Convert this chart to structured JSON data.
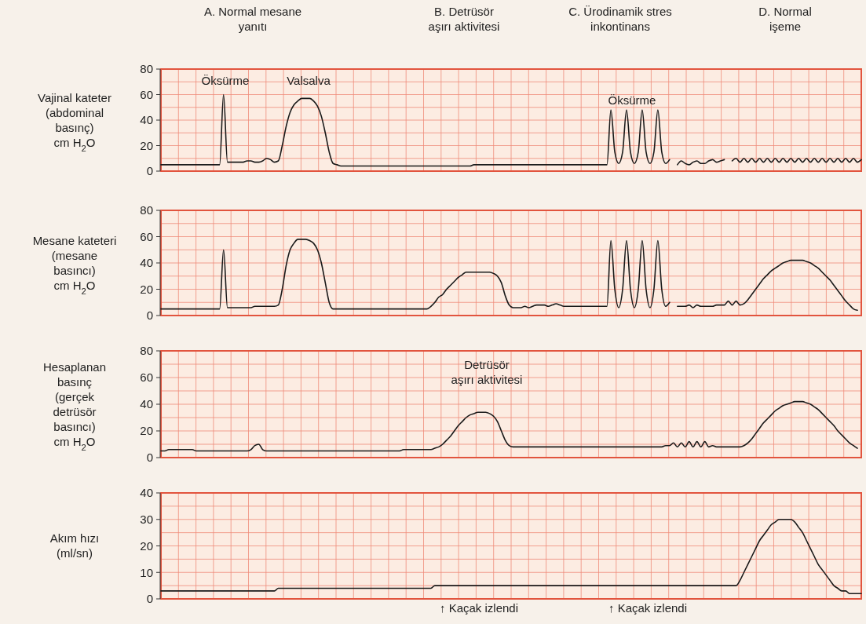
{
  "chart_data": [
    {
      "type": "line",
      "ylabel": "Vajinal kateter\n(abdominal\nbasınç)\ncm H$_{2}$O",
      "categories": [
        null,
        null,
        null,
        null,
        null,
        null,
        null,
        null,
        null,
        null,
        null,
        null,
        null,
        null,
        null,
        null,
        null,
        null,
        null,
        null,
        null,
        null,
        null,
        null,
        null,
        null,
        null,
        null,
        null,
        null,
        null,
        null,
        null,
        null,
        null,
        null,
        null,
        null,
        null,
        null,
        null,
        null,
        null,
        null,
        null,
        null,
        null,
        null,
        null,
        null,
        null,
        null,
        null,
        null,
        null,
        null,
        null,
        null,
        null,
        null,
        null,
        null,
        null,
        null,
        null,
        null,
        null,
        null,
        null,
        null,
        null,
        null,
        null,
        null,
        null,
        null,
        null,
        null,
        null,
        null,
        null,
        null,
        null,
        null,
        null,
        null,
        null,
        null,
        null,
        null,
        null,
        null,
        null,
        null,
        null,
        null,
        null,
        null,
        null,
        null,
        null,
        null,
        null,
        null,
        null,
        null,
        null,
        null,
        null,
        null,
        null,
        null,
        null,
        null,
        null,
        null,
        null,
        null,
        null,
        null,
        null,
        null,
        null,
        null,
        null,
        null,
        null,
        null,
        null,
        null,
        null,
        null,
        null,
        null,
        null,
        null,
        null,
        null,
        null,
        null,
        null,
        null,
        null,
        null,
        null,
        null,
        null,
        null,
        null,
        null,
        null,
        null,
        null,
        null,
        null,
        null,
        null,
        null,
        null,
        null,
        null,
        null,
        null,
        null,
        null,
        null,
        null,
        null,
        null,
        null,
        null,
        null,
        null,
        null,
        null,
        null,
        null,
        null,
        null,
        null
      ],
      "series": [
        {
          "color": "#1a1a1a",
          "values": [
            5,
            5,
            5,
            5,
            5,
            5,
            5,
            5,
            5,
            5,
            5,
            5,
            5,
            5,
            5,
            5,
            60,
            7,
            7,
            7,
            7,
            7,
            8,
            8,
            7,
            7,
            8,
            10,
            9,
            7,
            8,
            20,
            35,
            46,
            52,
            55,
            57,
            57,
            57,
            55,
            51,
            43,
            30,
            15,
            6,
            5,
            4,
            4,
            4,
            4,
            4,
            4,
            4,
            4,
            4,
            4,
            4,
            4,
            4,
            4,
            4,
            4,
            4,
            4,
            4,
            4,
            4,
            4,
            4,
            4,
            4,
            4,
            4,
            4,
            4,
            4,
            4,
            4,
            4,
            4,
            5,
            5,
            5,
            5,
            5,
            5,
            5,
            5,
            5,
            5,
            5,
            5,
            5,
            5,
            5,
            5,
            5,
            5,
            5,
            5,
            5,
            5,
            5,
            5,
            5,
            5,
            5,
            5,
            5,
            5,
            5,
            5,
            5,
            5,
            5,
            48,
            15,
            6,
            15,
            48,
            15,
            6,
            15,
            48,
            15,
            6,
            15,
            48,
            15,
            6,
            9,
            null,
            null,
            null,
            null,
            null,
            null,
            null,
            null,
            null,
            null,
            null,
            null,
            null,
            null,
            null,
            null,
            null,
            null,
            null,
            null,
            null,
            null,
            null,
            null,
            null,
            null,
            null,
            null,
            null,
            null,
            null,
            null,
            null,
            null,
            null,
            null,
            null,
            null,
            null,
            null,
            null,
            null,
            null,
            null,
            null,
            null,
            null,
            null,
            null
          ]
        },
        {
          "color": "#1a1a1a",
          "values": [
            null,
            null,
            null,
            null,
            null,
            null,
            null,
            null,
            null,
            null,
            null,
            null,
            null,
            null,
            null,
            null,
            null,
            null,
            null,
            null,
            null,
            null,
            null,
            null,
            null,
            null,
            null,
            null,
            null,
            null,
            null,
            null,
            null,
            null,
            null,
            null,
            null,
            null,
            null,
            null,
            null,
            null,
            null,
            null,
            null,
            null,
            null,
            null,
            null,
            null,
            null,
            null,
            null,
            null,
            null,
            null,
            null,
            null,
            null,
            null,
            null,
            null,
            null,
            null,
            null,
            null,
            null,
            null,
            null,
            null,
            null,
            null,
            null,
            null,
            null,
            null,
            null,
            null,
            null,
            null,
            null,
            null,
            null,
            null,
            null,
            null,
            null,
            null,
            null,
            null,
            null,
            null,
            null,
            null,
            null,
            null,
            null,
            null,
            null,
            null,
            null,
            null,
            null,
            null,
            null,
            null,
            null,
            null,
            null,
            null,
            null,
            null,
            null,
            null,
            null,
            null,
            null,
            null,
            null,
            null,
            null,
            null,
            null,
            null,
            null,
            null,
            null,
            null,
            null,
            null,
            null,
            null,
            5,
            8,
            6,
            5,
            7,
            8,
            6,
            6,
            8,
            9,
            7,
            8,
            9,
            null,
            null,
            null,
            null,
            null,
            null,
            null,
            null,
            null,
            null,
            null,
            null,
            null,
            null,
            null,
            null,
            null,
            null,
            null,
            null,
            null,
            null,
            null,
            null,
            null,
            null,
            null,
            null,
            null,
            null,
            null,
            null,
            null,
            null,
            null
          ]
        },
        {
          "color": "#1a1a1a",
          "values": [
            null,
            null,
            null,
            null,
            null,
            null,
            null,
            null,
            null,
            null,
            null,
            null,
            null,
            null,
            null,
            null,
            null,
            null,
            null,
            null,
            null,
            null,
            null,
            null,
            null,
            null,
            null,
            null,
            null,
            null,
            null,
            null,
            null,
            null,
            null,
            null,
            null,
            null,
            null,
            null,
            null,
            null,
            null,
            null,
            null,
            null,
            null,
            null,
            null,
            null,
            null,
            null,
            null,
            null,
            null,
            null,
            null,
            null,
            null,
            null,
            null,
            null,
            null,
            null,
            null,
            null,
            null,
            null,
            null,
            null,
            null,
            null,
            null,
            null,
            null,
            null,
            null,
            null,
            null,
            null,
            null,
            null,
            null,
            null,
            null,
            null,
            null,
            null,
            null,
            null,
            null,
            null,
            null,
            null,
            null,
            null,
            null,
            null,
            null,
            null,
            null,
            null,
            null,
            null,
            null,
            null,
            null,
            null,
            null,
            null,
            null,
            null,
            null,
            null,
            null,
            null,
            null,
            null,
            null,
            null,
            null,
            null,
            null,
            null,
            null,
            null,
            null,
            null,
            null,
            null,
            null,
            null,
            null,
            null,
            null,
            null,
            null,
            null,
            null,
            null,
            null,
            null,
            null,
            null,
            null,
            null,
            8,
            10,
            7,
            10,
            7,
            10,
            7,
            10,
            7,
            10,
            7,
            10,
            7,
            10,
            7,
            10,
            7,
            10,
            7,
            10,
            7,
            10,
            7,
            10,
            7,
            10,
            7,
            10,
            7,
            10,
            7,
            10,
            7,
            9
          ]
        }
      ],
      "ylim": [
        0,
        80
      ],
      "yticks": [
        0,
        20,
        40,
        60,
        80
      ],
      "grid": true,
      "tick_labels": "y",
      "annotations": [
        "A. Normal mesane\nyanıtı",
        "B. Detrüsör\naşırı aktivitesi",
        "C. Ürodinamik stres\ninkontinans",
        "D. Normal\nişeme",
        "Öksürme",
        "Valsalva",
        "Öksürme"
      ]
    },
    {
      "type": "line",
      "ylabel": "Mesane kateteri\n(mesane\nbasıncı)\ncm H$_{2}$O",
      "categories": [
        null,
        null,
        null,
        null,
        null,
        null,
        null,
        null,
        null,
        null,
        null,
        null,
        null,
        null,
        null,
        null,
        null,
        null,
        null,
        null,
        null,
        null,
        null,
        null,
        null,
        null,
        null,
        null,
        null,
        null,
        null,
        null,
        null,
        null,
        null,
        null,
        null,
        null,
        null,
        null,
        null,
        null,
        null,
        null,
        null,
        null,
        null,
        null,
        null,
        null,
        null,
        null,
        null,
        null,
        null,
        null,
        null,
        null,
        null,
        null,
        null,
        null,
        null,
        null,
        null,
        null,
        null,
        null,
        null,
        null,
        null,
        null,
        null,
        null,
        null,
        null,
        null,
        null,
        null,
        null,
        null,
        null,
        null,
        null,
        null,
        null,
        null,
        null,
        null,
        null,
        null,
        null,
        null,
        null,
        null,
        null,
        null,
        null,
        null,
        null,
        null,
        null,
        null,
        null,
        null,
        null,
        null,
        null,
        null,
        null,
        null,
        null,
        null,
        null,
        null,
        null,
        null,
        null,
        null,
        null,
        null,
        null,
        null,
        null,
        null,
        null,
        null,
        null,
        null,
        null,
        null,
        null,
        null,
        null,
        null,
        null,
        null,
        null,
        null,
        null,
        null,
        null,
        null,
        null,
        null,
        null,
        null,
        null,
        null,
        null,
        null,
        null,
        null,
        null,
        null,
        null,
        null,
        null,
        null,
        null,
        null,
        null,
        null,
        null,
        null,
        null,
        null,
        null,
        null,
        null,
        null,
        null,
        null,
        null,
        null,
        null,
        null,
        null,
        null,
        null
      ],
      "series": [
        {
          "color": "#1a1a1a",
          "values": [
            5,
            5,
            5,
            5,
            5,
            5,
            5,
            5,
            5,
            5,
            5,
            5,
            5,
            5,
            5,
            5,
            50,
            6,
            6,
            6,
            6,
            6,
            6,
            6,
            7,
            7,
            7,
            7,
            7,
            7,
            8,
            20,
            38,
            50,
            55,
            58,
            58,
            58,
            57,
            55,
            50,
            40,
            25,
            10,
            5,
            5,
            5,
            5,
            5,
            5,
            5,
            5,
            5,
            5,
            5,
            5,
            5,
            5,
            5,
            5,
            5,
            5,
            5,
            5,
            5,
            5,
            5,
            5,
            5,
            7,
            10,
            14,
            16,
            20,
            23,
            26,
            29,
            31,
            33,
            33,
            33,
            33,
            33,
            33,
            33,
            32,
            30,
            25,
            15,
            8,
            6,
            6,
            6,
            7,
            6,
            7,
            8,
            8,
            8,
            7,
            8,
            9,
            8,
            7,
            7,
            7,
            7,
            7,
            7,
            7,
            7,
            7,
            7,
            7,
            7,
            57,
            20,
            6,
            20,
            57,
            20,
            6,
            20,
            57,
            20,
            6,
            20,
            57,
            20,
            7,
            10,
            null,
            null,
            null,
            null,
            null,
            null,
            null,
            null,
            null,
            null,
            null,
            null,
            null,
            null,
            null,
            null,
            null,
            null,
            null,
            null,
            null,
            null,
            null,
            null,
            null,
            null,
            null,
            null,
            null,
            null,
            null,
            null,
            null,
            null,
            null,
            null,
            null,
            null,
            null,
            null,
            null,
            null,
            null,
            null,
            null,
            null,
            null,
            null,
            null
          ]
        },
        {
          "color": "#1a1a1a",
          "values": [
            null,
            null,
            null,
            null,
            null,
            null,
            null,
            null,
            null,
            null,
            null,
            null,
            null,
            null,
            null,
            null,
            null,
            null,
            null,
            null,
            null,
            null,
            null,
            null,
            null,
            null,
            null,
            null,
            null,
            null,
            null,
            null,
            null,
            null,
            null,
            null,
            null,
            null,
            null,
            null,
            null,
            null,
            null,
            null,
            null,
            null,
            null,
            null,
            null,
            null,
            null,
            null,
            null,
            null,
            null,
            null,
            null,
            null,
            null,
            null,
            null,
            null,
            null,
            null,
            null,
            null,
            null,
            null,
            null,
            null,
            null,
            null,
            null,
            null,
            null,
            null,
            null,
            null,
            null,
            null,
            null,
            null,
            null,
            null,
            null,
            null,
            null,
            null,
            null,
            null,
            null,
            null,
            null,
            null,
            null,
            null,
            null,
            null,
            null,
            null,
            null,
            null,
            null,
            null,
            null,
            null,
            null,
            null,
            null,
            null,
            null,
            null,
            null,
            null,
            null,
            null,
            null,
            null,
            null,
            null,
            null,
            null,
            null,
            null,
            null,
            null,
            null,
            null,
            null,
            null,
            null,
            null,
            7,
            7,
            7,
            8,
            6,
            8,
            7,
            7,
            7,
            7,
            8,
            8,
            8,
            11,
            8,
            11,
            8,
            9,
            12,
            16,
            20,
            24,
            28,
            31,
            34,
            36,
            38,
            40,
            41,
            42,
            42,
            42,
            42,
            41,
            40,
            38,
            36,
            33,
            30,
            27,
            23,
            19,
            15,
            11,
            8,
            5,
            4,
            null
          ]
        }
      ],
      "ylim": [
        0,
        80
      ],
      "yticks": [
        0,
        20,
        40,
        60,
        80
      ],
      "grid": true,
      "tick_labels": "y"
    },
    {
      "type": "line",
      "ylabel": "Hesaplanan\nbasınç\n(gerçek\ndetrüsör\nbasıncı)\ncm H$_{2}$O",
      "categories": [
        null,
        null,
        null,
        null,
        null,
        null,
        null,
        null,
        null,
        null,
        null,
        null,
        null,
        null,
        null,
        null,
        null,
        null,
        null,
        null,
        null,
        null,
        null,
        null,
        null,
        null,
        null,
        null,
        null,
        null,
        null,
        null,
        null,
        null,
        null,
        null,
        null,
        null,
        null,
        null,
        null,
        null,
        null,
        null,
        null,
        null,
        null,
        null,
        null,
        null,
        null,
        null,
        null,
        null,
        null,
        null,
        null,
        null,
        null,
        null,
        null,
        null,
        null,
        null,
        null,
        null,
        null,
        null,
        null,
        null,
        null,
        null,
        null,
        null,
        null,
        null,
        null,
        null,
        null,
        null,
        null,
        null,
        null,
        null,
        null,
        null,
        null,
        null,
        null,
        null,
        null,
        null,
        null,
        null,
        null,
        null,
        null,
        null,
        null,
        null,
        null,
        null,
        null,
        null,
        null,
        null,
        null,
        null,
        null,
        null,
        null,
        null,
        null,
        null,
        null,
        null,
        null,
        null,
        null,
        null,
        null,
        null,
        null,
        null,
        null,
        null,
        null,
        null,
        null,
        null,
        null,
        null,
        null,
        null,
        null,
        null,
        null,
        null,
        null,
        null,
        null,
        null,
        null,
        null,
        null,
        null,
        null,
        null,
        null,
        null,
        null,
        null,
        null,
        null,
        null,
        null,
        null,
        null,
        null,
        null,
        null,
        null,
        null,
        null,
        null,
        null,
        null,
        null,
        null,
        null,
        null,
        null,
        null,
        null,
        null,
        null,
        null,
        null,
        null,
        null
      ],
      "series": [
        {
          "color": "#1a1a1a",
          "values": [
            5,
            5,
            6,
            6,
            6,
            6,
            6,
            6,
            6,
            5,
            5,
            5,
            5,
            5,
            5,
            5,
            5,
            5,
            5,
            5,
            5,
            5,
            5,
            6,
            9,
            10,
            6,
            5,
            5,
            5,
            5,
            5,
            5,
            5,
            5,
            5,
            5,
            5,
            5,
            5,
            5,
            5,
            5,
            5,
            5,
            5,
            5,
            5,
            5,
            5,
            5,
            5,
            5,
            5,
            5,
            5,
            5,
            5,
            5,
            5,
            5,
            5,
            6,
            6,
            6,
            6,
            6,
            6,
            6,
            6,
            7,
            8,
            10,
            13,
            16,
            20,
            24,
            27,
            30,
            32,
            33,
            34,
            34,
            34,
            33,
            31,
            27,
            20,
            13,
            9,
            8,
            8,
            8,
            8,
            8,
            8,
            8,
            8,
            8,
            8,
            8,
            8,
            8,
            8,
            8,
            8,
            8,
            8,
            8,
            8,
            8,
            8,
            8,
            8,
            8,
            8,
            8,
            8,
            8,
            8,
            8,
            8,
            8,
            8,
            8,
            8,
            8,
            8,
            8,
            9,
            9,
            11,
            8,
            11,
            8,
            12,
            8,
            12,
            8,
            12,
            8,
            9,
            8,
            8,
            8,
            8,
            8,
            8,
            8,
            9,
            11,
            14,
            18,
            22,
            26,
            29,
            32,
            35,
            37,
            39,
            40,
            41,
            42,
            42,
            42,
            41,
            40,
            38,
            36,
            33,
            30,
            27,
            24,
            20,
            17,
            14,
            11,
            9,
            7,
            null
          ]
        }
      ],
      "ylim": [
        0,
        80
      ],
      "yticks": [
        0,
        20,
        40,
        60,
        80
      ],
      "grid": true,
      "tick_labels": "y",
      "annotations": [
        "Detrüsör\naşırı aktivitesi"
      ]
    },
    {
      "type": "line",
      "ylabel": "Akım hızı\n(ml/sn)",
      "categories": [
        null,
        null,
        null,
        null,
        null,
        null,
        null,
        null,
        null,
        null,
        null,
        null,
        null,
        null,
        null,
        null,
        null,
        null,
        null,
        null,
        null,
        null,
        null,
        null,
        null,
        null,
        null,
        null,
        null,
        null,
        null,
        null,
        null,
        null,
        null,
        null,
        null,
        null,
        null,
        null,
        null,
        null,
        null,
        null,
        null,
        null,
        null,
        null,
        null,
        null,
        null,
        null,
        null,
        null,
        null,
        null,
        null,
        null,
        null,
        null,
        null,
        null,
        null,
        null,
        null,
        null,
        null,
        null,
        null,
        null,
        null,
        null,
        null,
        null,
        null,
        null,
        null,
        null,
        null,
        null,
        null,
        null,
        null,
        null,
        null,
        null,
        null,
        null,
        null,
        null,
        null,
        null,
        null,
        null,
        null,
        null,
        null,
        null,
        null,
        null,
        null,
        null,
        null,
        null,
        null,
        null,
        null,
        null,
        null,
        null,
        null,
        null,
        null,
        null,
        null,
        null,
        null,
        null,
        null,
        null,
        null,
        null,
        null,
        null,
        null,
        null,
        null,
        null,
        null,
        null,
        null,
        null,
        null,
        null,
        null,
        null,
        null,
        null,
        null,
        null,
        null,
        null,
        null,
        null,
        null,
        null,
        null,
        null,
        null,
        null,
        null,
        null,
        null,
        null,
        null,
        null,
        null,
        null,
        null,
        null,
        null,
        null,
        null,
        null,
        null,
        null,
        null,
        null,
        null,
        null,
        null,
        null,
        null,
        null,
        null,
        null,
        null,
        null,
        null,
        null
      ],
      "series": [
        {
          "color": "#1a1a1a",
          "values": [
            3,
            3,
            3,
            3,
            3,
            3,
            3,
            3,
            3,
            3,
            3,
            3,
            3,
            3,
            3,
            3,
            3,
            3,
            3,
            3,
            3,
            3,
            3,
            3,
            3,
            3,
            3,
            3,
            3,
            3,
            4,
            4,
            4,
            4,
            4,
            4,
            4,
            4,
            4,
            4,
            4,
            4,
            4,
            4,
            4,
            4,
            4,
            4,
            4,
            4,
            4,
            4,
            4,
            4,
            4,
            4,
            4,
            4,
            4,
            4,
            4,
            4,
            4,
            4,
            4,
            4,
            4,
            4,
            4,
            4,
            5,
            5,
            5,
            5,
            5,
            5,
            5,
            5,
            5,
            5,
            5,
            5,
            5,
            5,
            5,
            5,
            5,
            5,
            5,
            5,
            5,
            5,
            5,
            5,
            5,
            5,
            5,
            5,
            5,
            5,
            5,
            5,
            5,
            5,
            5,
            5,
            5,
            5,
            5,
            5,
            5,
            5,
            5,
            5,
            5,
            5,
            5,
            5,
            5,
            5,
            5,
            5,
            5,
            5,
            5,
            5,
            5,
            5,
            5,
            5,
            5,
            5,
            5,
            5,
            5,
            5,
            5,
            5,
            5,
            5,
            5,
            5,
            5,
            5,
            5,
            5,
            5,
            5,
            7,
            10,
            13,
            16,
            19,
            22,
            24,
            26,
            28,
            29,
            30,
            30,
            30,
            30,
            29,
            27,
            25,
            22,
            19,
            16,
            13,
            11,
            9,
            7,
            5,
            4,
            3,
            3,
            2,
            2,
            2,
            2
          ]
        }
      ],
      "ylim": [
        0,
        40
      ],
      "yticks": [
        0,
        10,
        20,
        30,
        40
      ],
      "grid": true,
      "tick_labels": "y",
      "annotations": [
        "↑ Kaçak izlendi",
        "↑ Kaçak izlendi"
      ]
    }
  ]
}
